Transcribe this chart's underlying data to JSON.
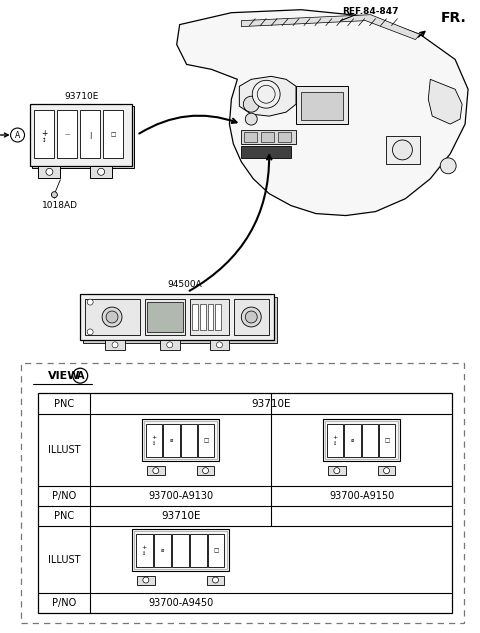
{
  "bg_color": "#ffffff",
  "line_color": "#000000",
  "gray_light": "#e8e8e8",
  "gray_mid": "#cccccc",
  "dash_color": "#888888",
  "fr_text": "FR.",
  "ref_text": "REF.84-847",
  "label_93710E": "93710E",
  "label_1018AD": "1018AD",
  "label_94500A": "94500A",
  "view_text": "VIEW",
  "view_circle_text": "A",
  "table_pnc1": "93710E",
  "table_pno1a": "93700-A9130",
  "table_pno1b": "93700-A9150",
  "table_pnc2": "93710E",
  "table_pno2": "93700-A9450",
  "row_label_pnc": "PNC",
  "row_label_illust": "ILLUST",
  "row_label_pno": "P/NO"
}
